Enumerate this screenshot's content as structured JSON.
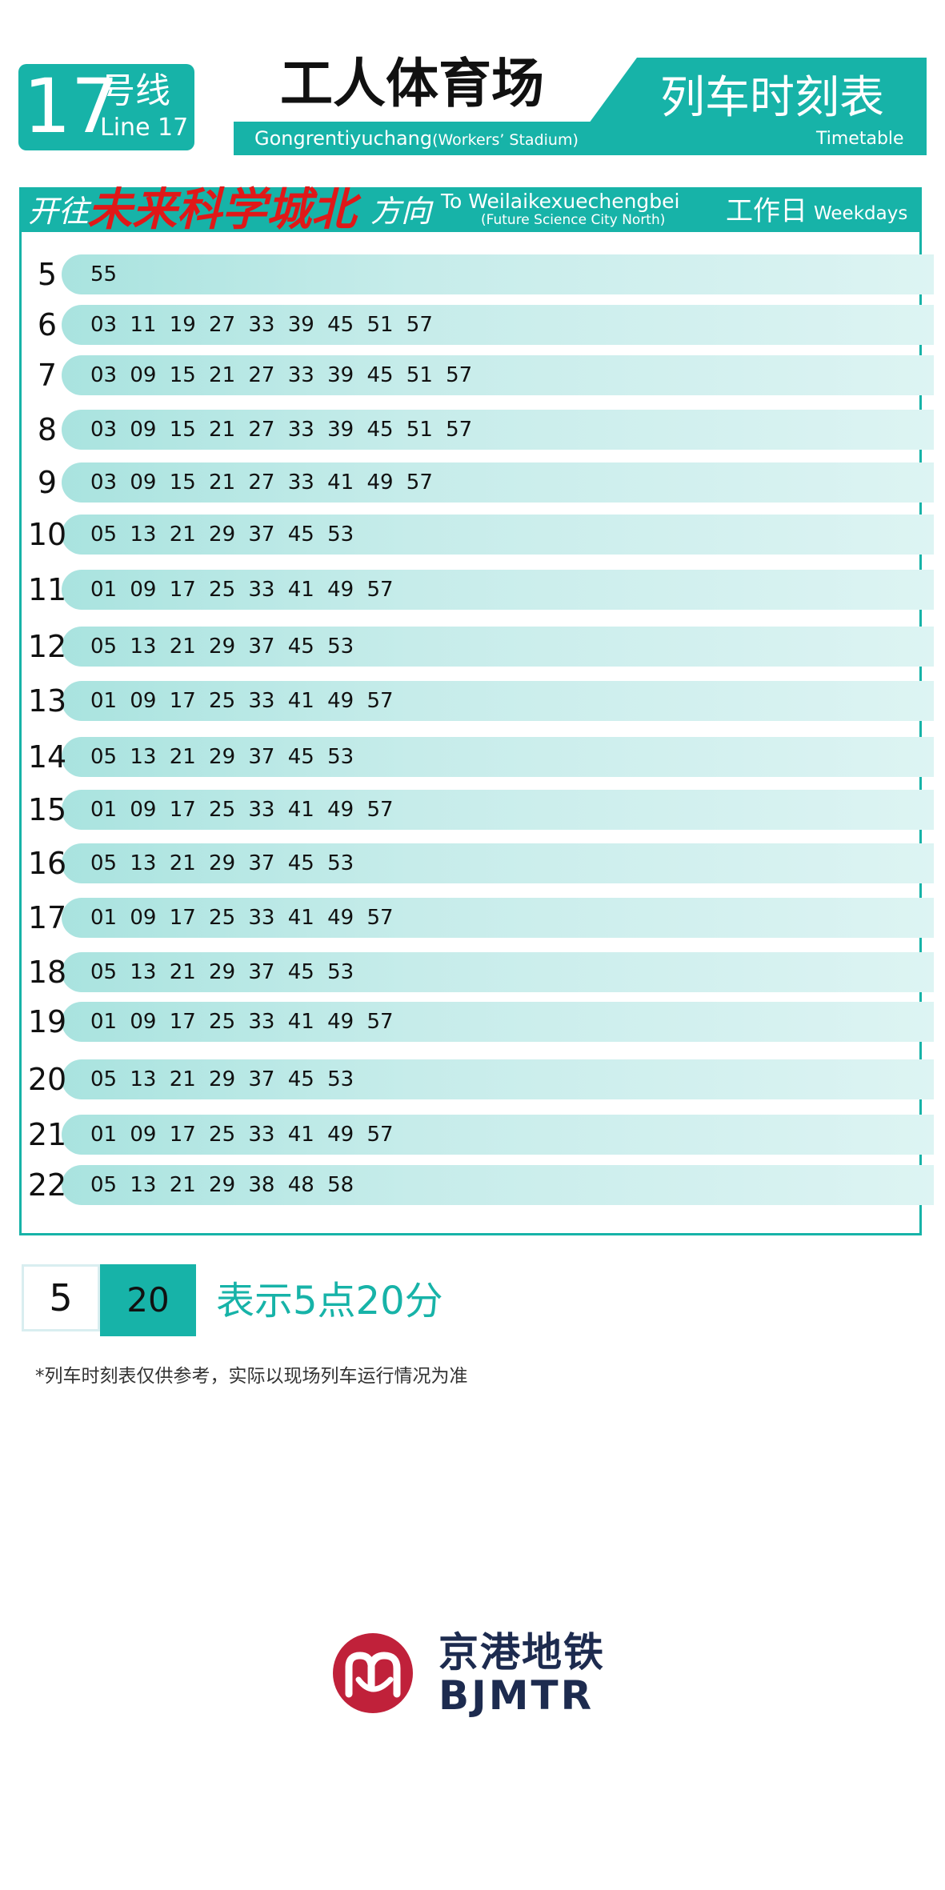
{
  "header": {
    "line_number": "17",
    "line_cn": "号线",
    "line_en": "Line 17",
    "station_cn": "工人体育场",
    "station_en_main": "Gongrentiyuchang",
    "station_en_sub": "(Workers’ Stadium)",
    "timetable_cn": "列车时刻表",
    "timetable_en": "Timetable"
  },
  "direction": {
    "prefix": "开往",
    "destination_cn": "未来科学城北",
    "suffix": "方向",
    "destination_en": "To Weilaikexuechengbei",
    "destination_en_sub": "(Future Science City North)",
    "day_cn": "工作日",
    "day_en": "Weekdays"
  },
  "schedule": [
    {
      "hour": "5",
      "minutes": "55"
    },
    {
      "hour": "6",
      "minutes": "03 11 19 27 33 39 45 51 57"
    },
    {
      "hour": "7",
      "minutes": "03 09 15 21 27 33 39 45 51 57"
    },
    {
      "hour": "8",
      "minutes": "03 09 15 21 27 33 39 45 51 57"
    },
    {
      "hour": "9",
      "minutes": "03 09 15 21 27 33 41 49 57"
    },
    {
      "hour": "10",
      "minutes": "05 13 21 29 37 45 53"
    },
    {
      "hour": "11",
      "minutes": "01 09 17 25 33 41 49 57"
    },
    {
      "hour": "12",
      "minutes": "05 13 21 29 37 45 53"
    },
    {
      "hour": "13",
      "minutes": "01 09 17 25 33 41 49 57"
    },
    {
      "hour": "14",
      "minutes": "05 13 21 29 37 45 53"
    },
    {
      "hour": "15",
      "minutes": "01 09 17 25 33 41 49 57"
    },
    {
      "hour": "16",
      "minutes": "05 13 21 29 37 45 53"
    },
    {
      "hour": "17",
      "minutes": "01 09 17 25 33 41 49 57"
    },
    {
      "hour": "18",
      "minutes": "05 13 21 29 37 45 53"
    },
    {
      "hour": "19",
      "minutes": "01 09 17 25 33 41 49 57"
    },
    {
      "hour": "20",
      "minutes": "05 13 21 29 37 45 53"
    },
    {
      "hour": "21",
      "minutes": "01 09 17 25 33 41 49 57"
    },
    {
      "hour": "22",
      "minutes": "05 13 21 29 38 48 58"
    }
  ],
  "legend": {
    "hour": "5",
    "minute": "20",
    "text": "表示5点20分"
  },
  "disclaimer": "*列车时刻表仅供参考，实际以现场列车运行情况为准",
  "logo": {
    "name_cn": "京港地铁",
    "name_en": "BJMTR",
    "color_red": "#c0213a",
    "color_navy": "#1d2b4f"
  },
  "colors": {
    "accent": "#17b3a8",
    "destination": "#e01818"
  }
}
